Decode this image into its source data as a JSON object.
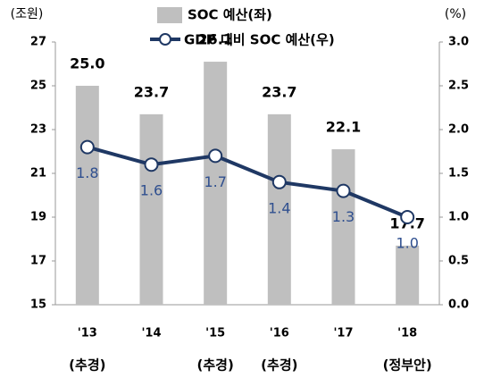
{
  "chart_data": {
    "type": "bar_line",
    "y_unit_label": "(조원)",
    "y2_unit_label": "(%)",
    "categories": [
      "'13",
      "'14",
      "'15",
      "'16",
      "'17",
      "'18"
    ],
    "category_notes": [
      "(추경)",
      null,
      "(추경)",
      "(추경)",
      null,
      "(정부안)"
    ],
    "series": [
      {
        "name": "SOC 예산(좌)",
        "type": "bar",
        "color": "#bfbfbf",
        "values": [
          25.0,
          23.7,
          26.1,
          23.7,
          22.1,
          17.7
        ],
        "value_labels": [
          "25.0",
          "23.7",
          "26.1",
          "23.7",
          "22.1",
          "17.7"
        ]
      },
      {
        "name": "GDP 대비 SOC 예산(우)",
        "type": "line",
        "axis": "y2",
        "color": "#1f3864",
        "values": [
          1.8,
          1.6,
          1.7,
          1.4,
          1.3,
          1.0
        ],
        "value_labels": [
          "1.8",
          "1.6",
          "1.7",
          "1.4",
          "1.3",
          "1.0"
        ]
      }
    ],
    "ylim": [
      15,
      27
    ],
    "yticks": [
      15,
      17,
      19,
      21,
      23,
      25,
      27
    ],
    "y2lim": [
      0,
      3
    ],
    "y2ticks": [
      {
        "value": 0,
        "label": "0.0"
      },
      {
        "value": 0.5,
        "label": "0.5"
      },
      {
        "value": 1,
        "label": "1.0"
      },
      {
        "value": 1.5,
        "label": "1.5"
      },
      {
        "value": 2,
        "label": "2.0"
      },
      {
        "value": 2.5,
        "label": "2.5"
      },
      {
        "value": 3,
        "label": "3.0"
      }
    ]
  }
}
